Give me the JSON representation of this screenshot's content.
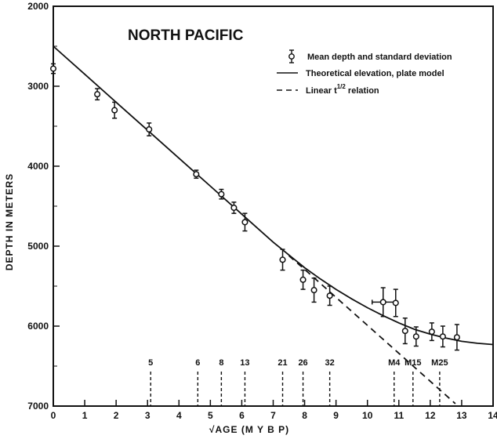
{
  "chart_data": {
    "type": "scatter",
    "title": "NORTH PACIFIC",
    "xlabel": "√AGE (M Y B P)",
    "ylabel": "DEPTH IN METERS",
    "xlim": [
      0,
      14
    ],
    "ylim": [
      7000,
      2000
    ],
    "x_ticks": [
      "0",
      "1",
      "2",
      "3",
      "4",
      "5",
      "6",
      "7",
      "8",
      "9",
      "10",
      "11",
      "12",
      "13",
      "14"
    ],
    "y_ticks": [
      "2000",
      "3000",
      "4000",
      "5000",
      "6000",
      "7000"
    ],
    "legend": [
      {
        "name": "Mean depth and standard deviation",
        "style": "marker-errorbar"
      },
      {
        "name": "Theoretical elevation, plate model",
        "style": "solid"
      },
      {
        "name": "Linear t^1/2 relation",
        "style": "dashed"
      }
    ],
    "series": [
      {
        "name": "Mean depth and standard deviation",
        "points": [
          {
            "x": 0.0,
            "y": 2780,
            "err": 60
          },
          {
            "x": 1.4,
            "y": 3100,
            "err": 70
          },
          {
            "x": 1.95,
            "y": 3300,
            "err": 100
          },
          {
            "x": 3.05,
            "y": 3540,
            "err": 80
          },
          {
            "x": 4.55,
            "y": 4100,
            "err": 50
          },
          {
            "x": 5.35,
            "y": 4350,
            "err": 60
          },
          {
            "x": 5.75,
            "y": 4520,
            "err": 70
          },
          {
            "x": 6.1,
            "y": 4700,
            "err": 110
          },
          {
            "x": 7.3,
            "y": 5170,
            "err": 130
          },
          {
            "x": 7.95,
            "y": 5420,
            "err": 120
          },
          {
            "x": 8.3,
            "y": 5550,
            "err": 150
          },
          {
            "x": 8.8,
            "y": 5620,
            "err": 120
          },
          {
            "x": 10.5,
            "y": 5700,
            "err": 180,
            "xerr": 0.35
          },
          {
            "x": 10.9,
            "y": 5710,
            "err": 170
          },
          {
            "x": 11.2,
            "y": 6060,
            "err": 160
          },
          {
            "x": 11.55,
            "y": 6130,
            "err": 120
          },
          {
            "x": 12.05,
            "y": 6070,
            "err": 110
          },
          {
            "x": 12.4,
            "y": 6130,
            "err": 130
          },
          {
            "x": 12.85,
            "y": 6140,
            "err": 160
          }
        ]
      },
      {
        "name": "Theoretical elevation, plate model",
        "x": [
          0,
          1,
          2,
          3,
          4,
          5,
          6,
          7,
          7.5,
          8,
          8.5,
          9,
          9.5,
          10,
          10.5,
          11,
          11.5,
          12,
          12.5,
          13,
          13.5,
          14
        ],
        "y": [
          2500,
          2850,
          3200,
          3550,
          3900,
          4250,
          4600,
          4950,
          5110,
          5270,
          5410,
          5540,
          5660,
          5770,
          5870,
          5960,
          6040,
          6100,
          6150,
          6190,
          6215,
          6230
        ]
      },
      {
        "name": "Linear t^1/2 relation",
        "x": [
          7.5,
          8,
          9,
          10,
          11,
          12,
          12.8
        ],
        "y": [
          5120,
          5290,
          5640,
          5990,
          6340,
          6690,
          6970
        ]
      }
    ],
    "anomalies": [
      {
        "label": "5",
        "x": 3.1
      },
      {
        "label": "6",
        "x": 4.6
      },
      {
        "label": "8",
        "x": 5.35
      },
      {
        "label": "13",
        "x": 6.1
      },
      {
        "label": "21",
        "x": 7.3
      },
      {
        "label": "26",
        "x": 7.95
      },
      {
        "label": "32",
        "x": 8.8
      },
      {
        "label": "M4",
        "x": 10.85
      },
      {
        "label": "M15",
        "x": 11.45
      },
      {
        "label": "M25",
        "x": 12.3
      }
    ]
  }
}
